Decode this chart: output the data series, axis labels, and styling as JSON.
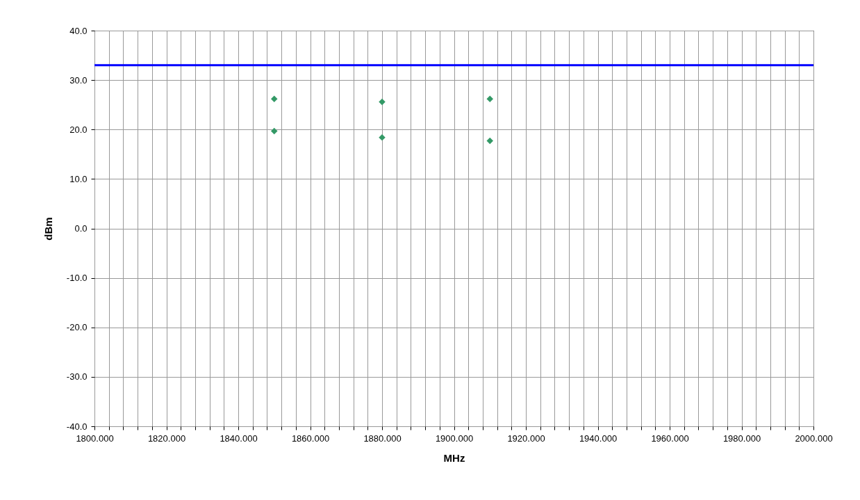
{
  "chart_data": {
    "type": "scatter",
    "xlabel": "MHz",
    "ylabel": "dBm",
    "x": [
      1850,
      1850,
      1880,
      1880,
      1910,
      1910
    ],
    "series": [
      {
        "color": "#339966",
        "values": [
          26.2,
          19.7,
          25.6,
          18.4,
          26.2,
          17.7
        ]
      }
    ],
    "marker": "diamond",
    "xlim": [
      1800,
      2000
    ],
    "xticks": [
      {
        "value": 1800,
        "label": "1800.000"
      },
      {
        "value": 1804,
        "label": null
      },
      {
        "value": 1808,
        "label": null
      },
      {
        "value": 1812,
        "label": null
      },
      {
        "value": 1816,
        "label": null
      },
      {
        "value": 1820,
        "label": "1820.000"
      },
      {
        "value": 1824,
        "label": null
      },
      {
        "value": 1828,
        "label": null
      },
      {
        "value": 1832,
        "label": null
      },
      {
        "value": 1836,
        "label": null
      },
      {
        "value": 1840,
        "label": "1840.000"
      },
      {
        "value": 1844,
        "label": null
      },
      {
        "value": 1848,
        "label": null
      },
      {
        "value": 1852,
        "label": null
      },
      {
        "value": 1856,
        "label": null
      },
      {
        "value": 1860,
        "label": "1860.000"
      },
      {
        "value": 1864,
        "label": null
      },
      {
        "value": 1868,
        "label": null
      },
      {
        "value": 1872,
        "label": null
      },
      {
        "value": 1876,
        "label": null
      },
      {
        "value": 1880,
        "label": "1880.000"
      },
      {
        "value": 1884,
        "label": null
      },
      {
        "value": 1888,
        "label": null
      },
      {
        "value": 1892,
        "label": null
      },
      {
        "value": 1896,
        "label": null
      },
      {
        "value": 1900,
        "label": "1900.000"
      },
      {
        "value": 1904,
        "label": null
      },
      {
        "value": 1908,
        "label": null
      },
      {
        "value": 1912,
        "label": null
      },
      {
        "value": 1916,
        "label": null
      },
      {
        "value": 1920,
        "label": "1920.000"
      },
      {
        "value": 1924,
        "label": null
      },
      {
        "value": 1928,
        "label": null
      },
      {
        "value": 1932,
        "label": null
      },
      {
        "value": 1936,
        "label": null
      },
      {
        "value": 1940,
        "label": "1940.000"
      },
      {
        "value": 1944,
        "label": null
      },
      {
        "value": 1948,
        "label": null
      },
      {
        "value": 1952,
        "label": null
      },
      {
        "value": 1956,
        "label": null
      },
      {
        "value": 1960,
        "label": "1960.000"
      },
      {
        "value": 1964,
        "label": null
      },
      {
        "value": 1968,
        "label": null
      },
      {
        "value": 1972,
        "label": null
      },
      {
        "value": 1976,
        "label": null
      },
      {
        "value": 1980,
        "label": "1980.000"
      },
      {
        "value": 1984,
        "label": null
      },
      {
        "value": 1988,
        "label": null
      },
      {
        "value": 1992,
        "label": null
      },
      {
        "value": 1996,
        "label": null
      },
      {
        "value": 2000,
        "label": "2000.000"
      }
    ],
    "ylim": [
      -40,
      40
    ],
    "yticks": [
      {
        "value": -40,
        "label": "-40.0"
      },
      {
        "value": -30,
        "label": "-30.0"
      },
      {
        "value": -20,
        "label": "-20.0"
      },
      {
        "value": -10,
        "label": "-10.0"
      },
      {
        "value": 0,
        "label": "0.0"
      },
      {
        "value": 10,
        "label": "10.0"
      },
      {
        "value": 20,
        "label": "20.0"
      },
      {
        "value": 30,
        "label": "30.0"
      },
      {
        "value": 40,
        "label": "40.0"
      }
    ],
    "grid": true,
    "ref_lines": [
      {
        "axis": "y",
        "value": 33,
        "color": "#0000ff"
      }
    ]
  }
}
